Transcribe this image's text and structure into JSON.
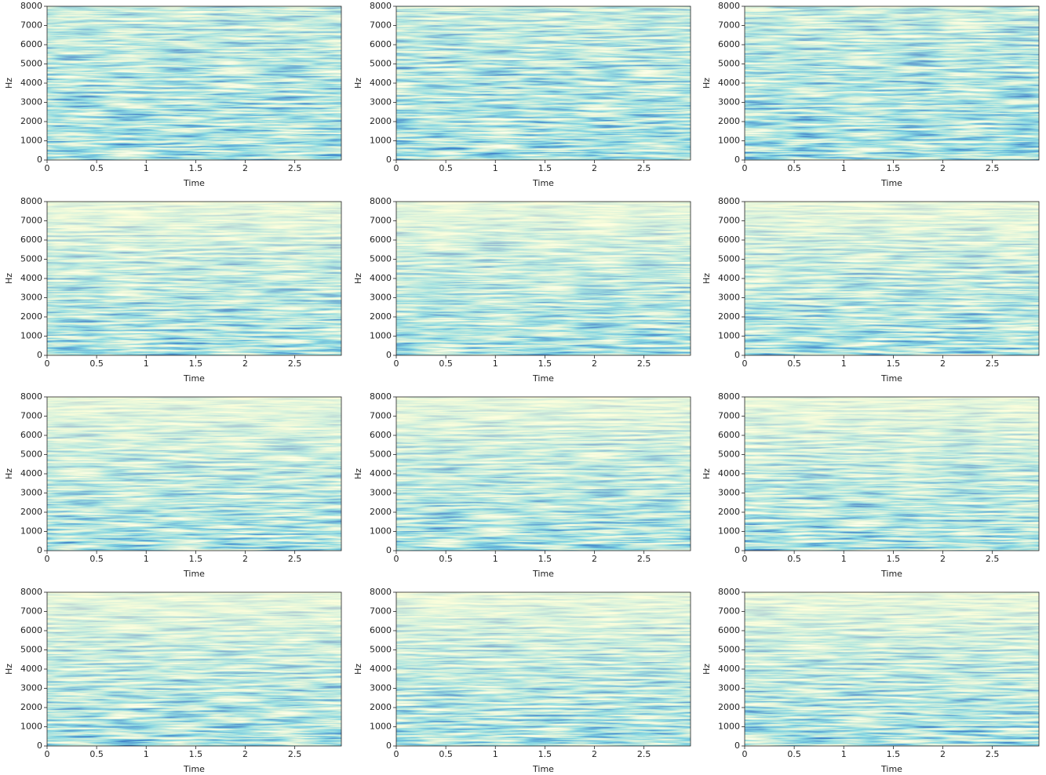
{
  "chart_data": [
    {
      "type": "spectrogram",
      "xlabel": "Time",
      "ylabel": "Hz",
      "xlim": [
        0,
        2.97
      ],
      "ylim": [
        0,
        8000
      ],
      "xticks": [
        0,
        0.5,
        1,
        1.5,
        2,
        2.5
      ],
      "yticks": [
        0,
        1000,
        2000,
        3000,
        4000,
        5000,
        6000,
        7000,
        8000
      ],
      "colormap": "YlGnBu"
    },
    {
      "type": "spectrogram",
      "xlabel": "Time",
      "ylabel": "Hz",
      "xlim": [
        0,
        2.97
      ],
      "ylim": [
        0,
        8000
      ],
      "xticks": [
        0,
        0.5,
        1,
        1.5,
        2,
        2.5
      ],
      "yticks": [
        0,
        1000,
        2000,
        3000,
        4000,
        5000,
        6000,
        7000,
        8000
      ],
      "colormap": "YlGnBu"
    },
    {
      "type": "spectrogram",
      "xlabel": "Time",
      "ylabel": "Hz",
      "xlim": [
        0,
        2.97
      ],
      "ylim": [
        0,
        8000
      ],
      "xticks": [
        0,
        0.5,
        1,
        1.5,
        2,
        2.5
      ],
      "yticks": [
        0,
        1000,
        2000,
        3000,
        4000,
        5000,
        6000,
        7000,
        8000
      ],
      "colormap": "YlGnBu"
    },
    {
      "type": "spectrogram",
      "xlabel": "Time",
      "ylabel": "Hz",
      "xlim": [
        0,
        2.97
      ],
      "ylim": [
        0,
        8000
      ],
      "xticks": [
        0,
        0.5,
        1,
        1.5,
        2,
        2.5
      ],
      "yticks": [
        0,
        1000,
        2000,
        3000,
        4000,
        5000,
        6000,
        7000,
        8000
      ],
      "colormap": "YlGnBu"
    },
    {
      "type": "spectrogram",
      "xlabel": "Time",
      "ylabel": "Hz",
      "xlim": [
        0,
        2.97
      ],
      "ylim": [
        0,
        8000
      ],
      "xticks": [
        0,
        0.5,
        1,
        1.5,
        2,
        2.5
      ],
      "yticks": [
        0,
        1000,
        2000,
        3000,
        4000,
        5000,
        6000,
        7000,
        8000
      ],
      "colormap": "YlGnBu"
    },
    {
      "type": "spectrogram",
      "xlabel": "Time",
      "ylabel": "Hz",
      "xlim": [
        0,
        2.97
      ],
      "ylim": [
        0,
        8000
      ],
      "xticks": [
        0,
        0.5,
        1,
        1.5,
        2,
        2.5
      ],
      "yticks": [
        0,
        1000,
        2000,
        3000,
        4000,
        5000,
        6000,
        7000,
        8000
      ],
      "colormap": "YlGnBu"
    },
    {
      "type": "spectrogram",
      "xlabel": "Time",
      "ylabel": "Hz",
      "xlim": [
        0,
        2.97
      ],
      "ylim": [
        0,
        8000
      ],
      "xticks": [
        0,
        0.5,
        1,
        1.5,
        2,
        2.5
      ],
      "yticks": [
        0,
        1000,
        2000,
        3000,
        4000,
        5000,
        6000,
        7000,
        8000
      ],
      "colormap": "YlGnBu"
    },
    {
      "type": "spectrogram",
      "xlabel": "Time",
      "ylabel": "Hz",
      "xlim": [
        0,
        2.97
      ],
      "ylim": [
        0,
        8000
      ],
      "xticks": [
        0,
        0.5,
        1,
        1.5,
        2,
        2.5
      ],
      "yticks": [
        0,
        1000,
        2000,
        3000,
        4000,
        5000,
        6000,
        7000,
        8000
      ],
      "colormap": "YlGnBu"
    },
    {
      "type": "spectrogram",
      "xlabel": "Time",
      "ylabel": "Hz",
      "xlim": [
        0,
        2.97
      ],
      "ylim": [
        0,
        8000
      ],
      "xticks": [
        0,
        0.5,
        1,
        1.5,
        2,
        2.5
      ],
      "yticks": [
        0,
        1000,
        2000,
        3000,
        4000,
        5000,
        6000,
        7000,
        8000
      ],
      "colormap": "YlGnBu"
    },
    {
      "type": "spectrogram",
      "xlabel": "Time",
      "ylabel": "Hz",
      "xlim": [
        0,
        2.97
      ],
      "ylim": [
        0,
        8000
      ],
      "xticks": [
        0,
        0.5,
        1,
        1.5,
        2,
        2.5
      ],
      "yticks": [
        0,
        1000,
        2000,
        3000,
        4000,
        5000,
        6000,
        7000,
        8000
      ],
      "colormap": "YlGnBu"
    },
    {
      "type": "spectrogram",
      "xlabel": "Time",
      "ylabel": "Hz",
      "xlim": [
        0,
        2.97
      ],
      "ylim": [
        0,
        8000
      ],
      "xticks": [
        0,
        0.5,
        1,
        1.5,
        2,
        2.5
      ],
      "yticks": [
        0,
        1000,
        2000,
        3000,
        4000,
        5000,
        6000,
        7000,
        8000
      ],
      "colormap": "YlGnBu"
    },
    {
      "type": "spectrogram",
      "xlabel": "Time",
      "ylabel": "Hz",
      "xlim": [
        0,
        2.97
      ],
      "ylim": [
        0,
        8000
      ],
      "xticks": [
        0,
        0.5,
        1,
        1.5,
        2,
        2.5
      ],
      "yticks": [
        0,
        1000,
        2000,
        3000,
        4000,
        5000,
        6000,
        7000,
        8000
      ],
      "colormap": "YlGnBu"
    }
  ]
}
